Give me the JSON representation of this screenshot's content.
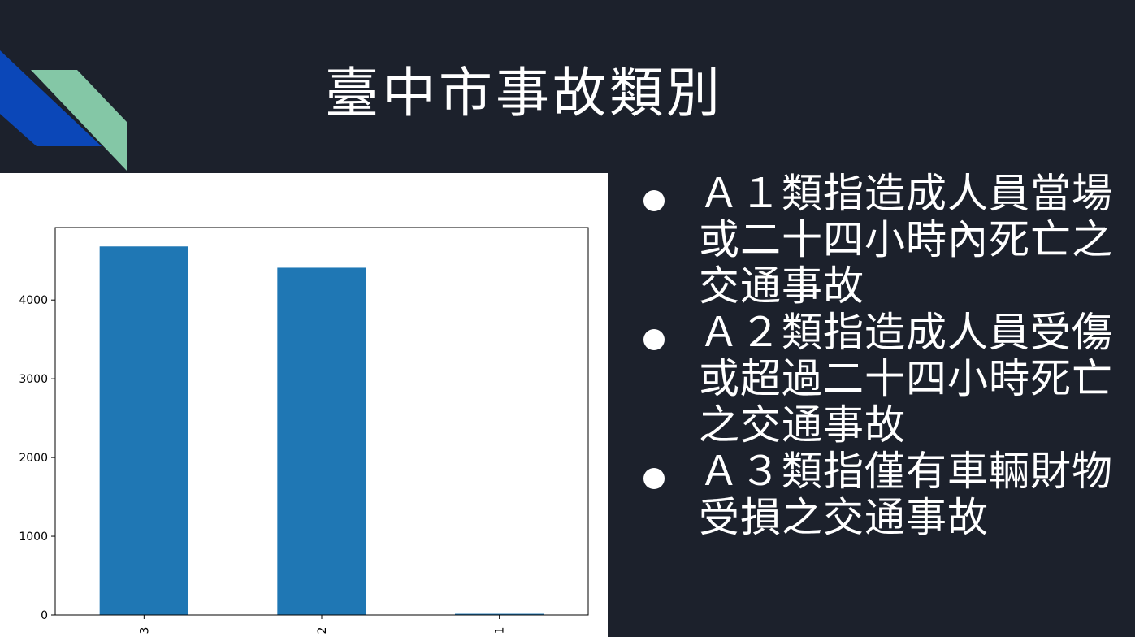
{
  "slide": {
    "title": "臺中市事故類別",
    "colors": {
      "background": "#1c212c",
      "accent_blue": "#0b47b8",
      "accent_green": "#84c7a6",
      "bar": "#1f77b4"
    }
  },
  "bullets": [
    {
      "text": "Ａ１類指造成人員當場或二十四小時內死亡之交通事故"
    },
    {
      "text": "Ａ２類指造成人員受傷或超過二十四小時死亡之交通事故"
    },
    {
      "text": "Ａ３類指僅有車輛財物受損之交通事故"
    }
  ],
  "chart_data": {
    "type": "bar",
    "title": "",
    "xlabel": "",
    "ylabel": "",
    "categories": [
      "3",
      "2",
      "1"
    ],
    "values": [
      4680,
      4410,
      15
    ],
    "ylim": [
      0,
      4920
    ],
    "yticks": [
      0,
      1000,
      2000,
      3000,
      4000
    ],
    "grid": false
  }
}
